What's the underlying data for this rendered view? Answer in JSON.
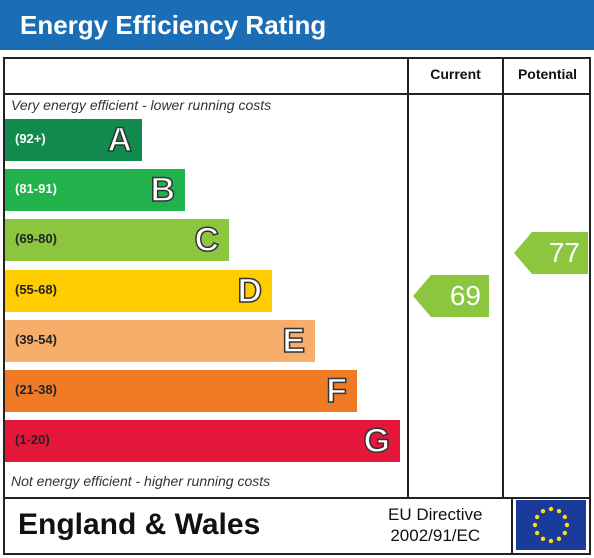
{
  "title": "Energy Efficiency Rating",
  "columns": {
    "current": "Current",
    "potential": "Potential"
  },
  "caption_top": "Very energy efficient - lower running costs",
  "caption_bottom": "Not energy efficient - higher running costs",
  "footer": {
    "region": "England & Wales",
    "directive_line1": "EU Directive",
    "directive_line2": "2002/91/EC"
  },
  "colors": {
    "header": "#1b6eb5",
    "A": "#118a4e",
    "B": "#22b24c",
    "C": "#8cc63f",
    "D": "#ffcc00",
    "E": "#f7ae6a",
    "F": "#f07b27",
    "G": "#e4173b",
    "current_arrow": "#8cc63f",
    "potential_arrow": "#8cc63f",
    "flag": "#1a3a9c",
    "flag_stars": "#ffdd00"
  },
  "chart_data": {
    "type": "bar",
    "categories": [
      "A",
      "B",
      "C",
      "D",
      "E",
      "F",
      "G"
    ],
    "bands": [
      {
        "letter": "A",
        "range": "(92+)"
      },
      {
        "letter": "B",
        "range": "(81-91)"
      },
      {
        "letter": "C",
        "range": "(69-80)"
      },
      {
        "letter": "D",
        "range": "(55-68)"
      },
      {
        "letter": "E",
        "range": "(39-54)"
      },
      {
        "letter": "F",
        "range": "(21-38)"
      },
      {
        "letter": "G",
        "range": "(1-20)"
      }
    ],
    "series": [
      {
        "name": "Current",
        "value": 69,
        "band": "C"
      },
      {
        "name": "Potential",
        "value": 77,
        "band": "C"
      }
    ]
  }
}
